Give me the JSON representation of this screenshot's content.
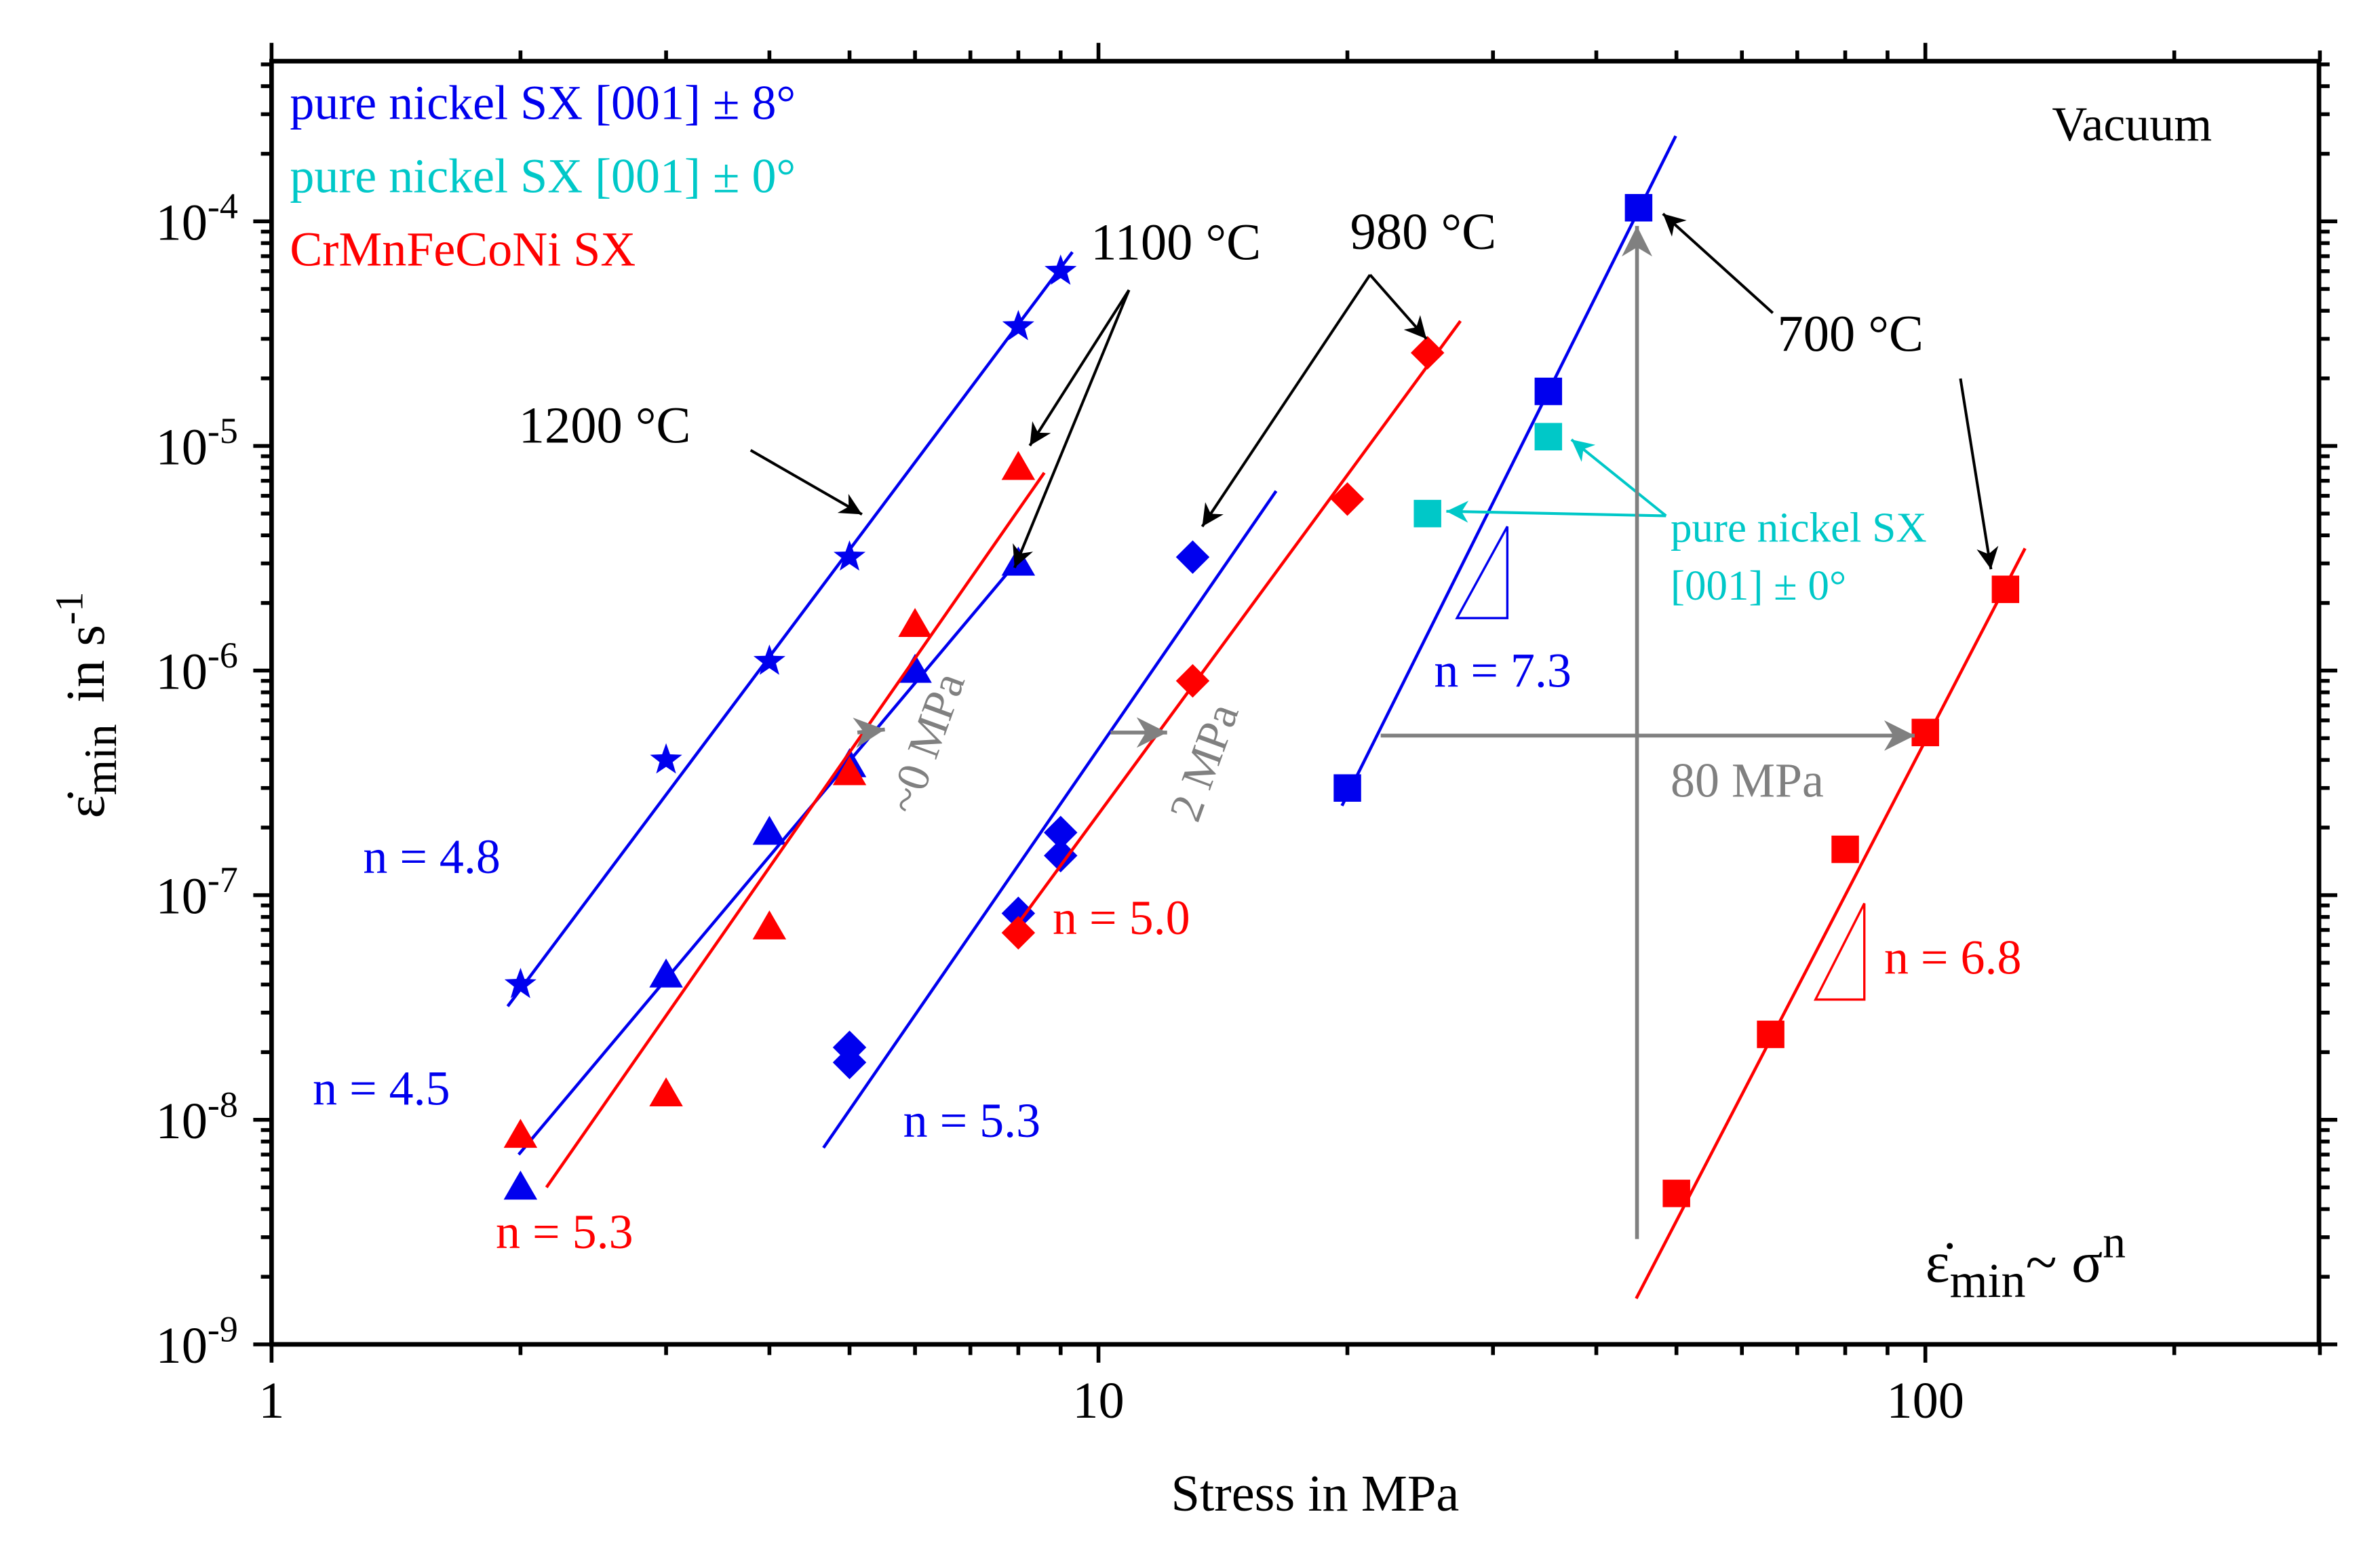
{
  "chart_data": {
    "type": "scatter",
    "title": "",
    "xlabel": "Stress in MPa",
    "ylabel": {
      "symbol": "ε̇",
      "sub": "min",
      "unit": "in s",
      "sup": "-1"
    },
    "xscale": "log",
    "yscale": "log",
    "xlim": [
      1,
      300
    ],
    "ylim": [
      1e-09,
      0.0005
    ],
    "x_ticks": [
      {
        "v": 1,
        "label": "1"
      },
      {
        "v": 10,
        "label": "10"
      },
      {
        "v": 100,
        "label": "100"
      }
    ],
    "y_ticks": [
      {
        "v": 1e-09,
        "base": "10",
        "exp": "-9"
      },
      {
        "v": 1e-08,
        "base": "10",
        "exp": "-8"
      },
      {
        "v": 1e-07,
        "base": "10",
        "exp": "-7"
      },
      {
        "v": 1e-06,
        "base": "10",
        "exp": "-6"
      },
      {
        "v": 1e-05,
        "base": "10",
        "exp": "-5"
      },
      {
        "v": 0.0001,
        "base": "10",
        "exp": "-4"
      }
    ],
    "legend": {
      "placement": "top-left",
      "entries": [
        {
          "label": "pure nickel SX [001] ± 8°",
          "color": "#0000ee"
        },
        {
          "label": "pure nickel SX [001] ± 0°",
          "color": "#00c8c8"
        },
        {
          "label": "CrMnFeCoNi SX",
          "color": "#ff0000"
        }
      ]
    },
    "series": [
      {
        "name": "Ni SX ±8° 1200 °C",
        "marker": "star",
        "color": "#0000ee",
        "x": [
          2,
          3,
          4,
          5,
          8,
          9
        ],
        "y": [
          4e-08,
          4e-07,
          1.1e-06,
          3.2e-06,
          3.4e-05,
          6e-05
        ],
        "fit": {
          "x": [
            1.93,
            9.3
          ],
          "y": [
            3.2e-08,
            7.3e-05
          ],
          "n_label": "n = 4.8"
        }
      },
      {
        "name": "Ni SX ±8° 1100 °C",
        "marker": "triangle",
        "color": "#0000ee",
        "x": [
          2,
          3,
          4,
          5,
          6,
          8
        ],
        "y": [
          5e-09,
          4.4e-08,
          1.9e-07,
          3.8e-07,
          1e-06,
          3e-06
        ],
        "fit": {
          "x": [
            1.99,
            8.0
          ],
          "y": [
            7e-09,
            3.1e-06
          ],
          "n_label": "n = 4.5"
        }
      },
      {
        "name": "CrMnFeCoNi SX 1100 °C",
        "marker": "triangle",
        "color": "#ff0000",
        "x": [
          2,
          3,
          4,
          5,
          6,
          8
        ],
        "y": [
          8.5e-09,
          1.3e-08,
          7.2e-08,
          3.5e-07,
          1.6e-06,
          8e-06
        ],
        "fit": {
          "x": [
            2.15,
            8.6
          ],
          "y": [
            5e-09,
            7.6e-06
          ],
          "n_label": "n = 5.3"
        }
      },
      {
        "name": "Ni SX ±8° 980 °C",
        "marker": "diamond",
        "color": "#0000ee",
        "x": [
          5,
          5,
          8,
          9,
          9,
          13
        ],
        "y": [
          1.8e-08,
          2.1e-08,
          8.3e-08,
          1.5e-07,
          1.9e-07,
          3.2e-06
        ],
        "fit": {
          "x": [
            4.65,
            16.4
          ],
          "y": [
            7.5e-09,
            6.3e-06
          ],
          "n_label": "n = 5.3"
        }
      },
      {
        "name": "CrMnFeCoNi SX 980 °C",
        "marker": "diamond",
        "color": "#ff0000",
        "x": [
          8,
          13,
          20,
          25
        ],
        "y": [
          6.8e-08,
          9e-07,
          5.8e-06,
          2.6e-05
        ],
        "fit": {
          "x": [
            8.0,
            27.4
          ],
          "y": [
            7.5e-08,
            3.6e-05
          ],
          "n_label": "n = 5.0"
        }
      },
      {
        "name": "Ni SX ±8° 700 °C",
        "marker": "square",
        "color": "#0000ee",
        "x": [
          20,
          35,
          45
        ],
        "y": [
          3e-07,
          1.75e-05,
          0.000115
        ],
        "fit": {
          "x": [
            19.7,
            49.9
          ],
          "y": [
            2.5e-07,
            0.00024
          ],
          "n_label": "n = 7.3"
        }
      },
      {
        "name": "Ni SX ±0° 700 °C",
        "marker": "square",
        "color": "#00c8c8",
        "x": [
          25,
          35
        ],
        "y": [
          5e-06,
          1.1e-05
        ]
      },
      {
        "name": "CrMnFeCoNi SX 700 °C",
        "marker": "square",
        "color": "#ff0000",
        "x": [
          50,
          65,
          80,
          100,
          125
        ],
        "y": [
          4.7e-09,
          2.4e-08,
          1.6e-07,
          5.3e-07,
          2.3e-06
        ],
        "fit": {
          "x": [
            44.7,
            132
          ],
          "y": [
            1.6e-09,
            3.5e-06
          ],
          "n_label": "n = 6.8"
        }
      }
    ],
    "annotations": {
      "atmosphere": "Vacuum",
      "t1200": "1200 °C",
      "t1100": "1100 °C",
      "t980": "980 °C",
      "t700": "700 °C",
      "cyan_label_1": "pure nickel SX",
      "cyan_label_2": "[001] ± 0°",
      "shift_1100": "~0 MPa",
      "shift_980": "2 MPa",
      "shift_700": "80 MPa",
      "law": {
        "symbol": "ε̇",
        "sub": "min",
        "rel": "~ σ",
        "sup": "n"
      }
    },
    "colors": {
      "blue": "#0000ee",
      "cyan": "#00c8c8",
      "red": "#ff0000",
      "gray": "#808080",
      "black": "#000000"
    }
  }
}
